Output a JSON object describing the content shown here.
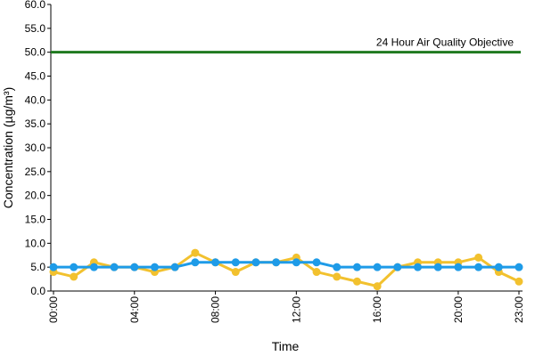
{
  "chart_data": {
    "type": "line",
    "x_label": "Time",
    "y_label": "Concentration (µg/m³)",
    "categories": [
      "00:00",
      null,
      null,
      null,
      "04:00",
      null,
      null,
      null,
      "08:00",
      null,
      null,
      null,
      "12:00",
      null,
      null,
      null,
      "16:00",
      null,
      null,
      null,
      "20:00",
      null,
      null,
      "23:00"
    ],
    "series": [
      {
        "color": "#f2c12e",
        "values": [
          4,
          3,
          6,
          5,
          5,
          4,
          5,
          8,
          6,
          4,
          6,
          6,
          7,
          4,
          3,
          2,
          1,
          5,
          6,
          6,
          6,
          7,
          4,
          2
        ]
      },
      {
        "color": "#1e9be8",
        "values": [
          5,
          5,
          5,
          5,
          5,
          5,
          5,
          6,
          6,
          6,
          6,
          6,
          6,
          6,
          5,
          5,
          5,
          5,
          5,
          5,
          5,
          5,
          5,
          5
        ]
      }
    ],
    "objective": {
      "value": 50,
      "label": "24 Hour Air Quality Objective",
      "color": "#1f7a1f"
    },
    "ylim": [
      0,
      60
    ],
    "yticks": [
      {
        "value": 0,
        "label": "0.0"
      },
      {
        "value": 5,
        "label": "5.0"
      },
      {
        "value": 10,
        "label": "10.0"
      },
      {
        "value": 15,
        "label": "15.0"
      },
      {
        "value": 20,
        "label": "20.0"
      },
      {
        "value": 25,
        "label": "25.0"
      },
      {
        "value": 30,
        "label": "30.0"
      },
      {
        "value": 35,
        "label": "35.0"
      },
      {
        "value": 40,
        "label": "40.0"
      },
      {
        "value": 45,
        "label": "45.0"
      },
      {
        "value": 50,
        "label": "50.0"
      },
      {
        "value": 55,
        "label": "55.0"
      },
      {
        "value": 60,
        "label": "60.0"
      }
    ]
  }
}
